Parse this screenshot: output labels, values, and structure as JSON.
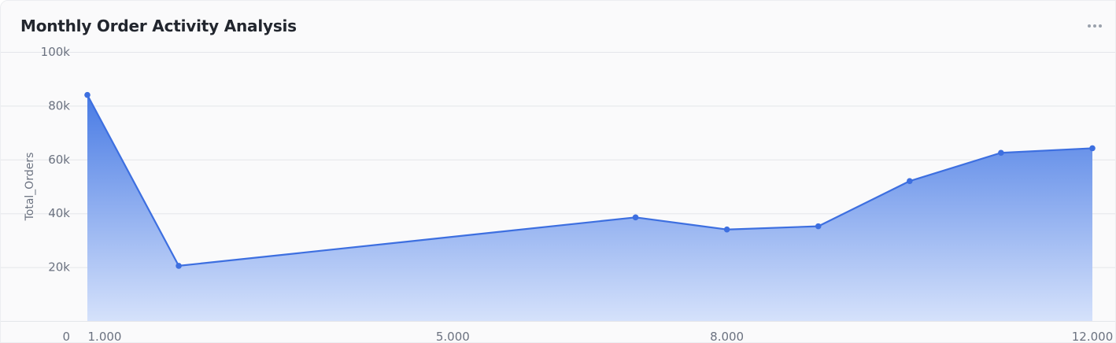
{
  "card": {
    "title": "Monthly Order Activity Analysis",
    "menu_icon": "more-horizontal-icon"
  },
  "colors": {
    "line": "#3d6fe0",
    "fill_top": "#3f74e3",
    "fill_bottom": "#d3e0fb",
    "grid": "#e4e6ea"
  },
  "chart_data": {
    "type": "area",
    "title": "Monthly Order Activity Analysis",
    "xlabel": "",
    "ylabel": "Total_Orders",
    "xlim": [
      1,
      12
    ],
    "ylim": [
      0,
      100000
    ],
    "x_ticks": [
      {
        "value": 1,
        "label": "1.000"
      },
      {
        "value": 5,
        "label": "5.000"
      },
      {
        "value": 8,
        "label": "8.000"
      },
      {
        "value": 12,
        "label": "12.000"
      }
    ],
    "y_ticks": [
      {
        "value": 0,
        "label": "0"
      },
      {
        "value": 20000,
        "label": "20k"
      },
      {
        "value": 40000,
        "label": "40k"
      },
      {
        "value": 60000,
        "label": "60k"
      },
      {
        "value": 80000,
        "label": "80k"
      },
      {
        "value": 100000,
        "label": "100k"
      }
    ],
    "grid": true,
    "legend": "none",
    "x": [
      1,
      2,
      7,
      8,
      9,
      10,
      11,
      12
    ],
    "values": [
      84000,
      20500,
      38500,
      34000,
      35200,
      52000,
      62500,
      64200
    ]
  }
}
